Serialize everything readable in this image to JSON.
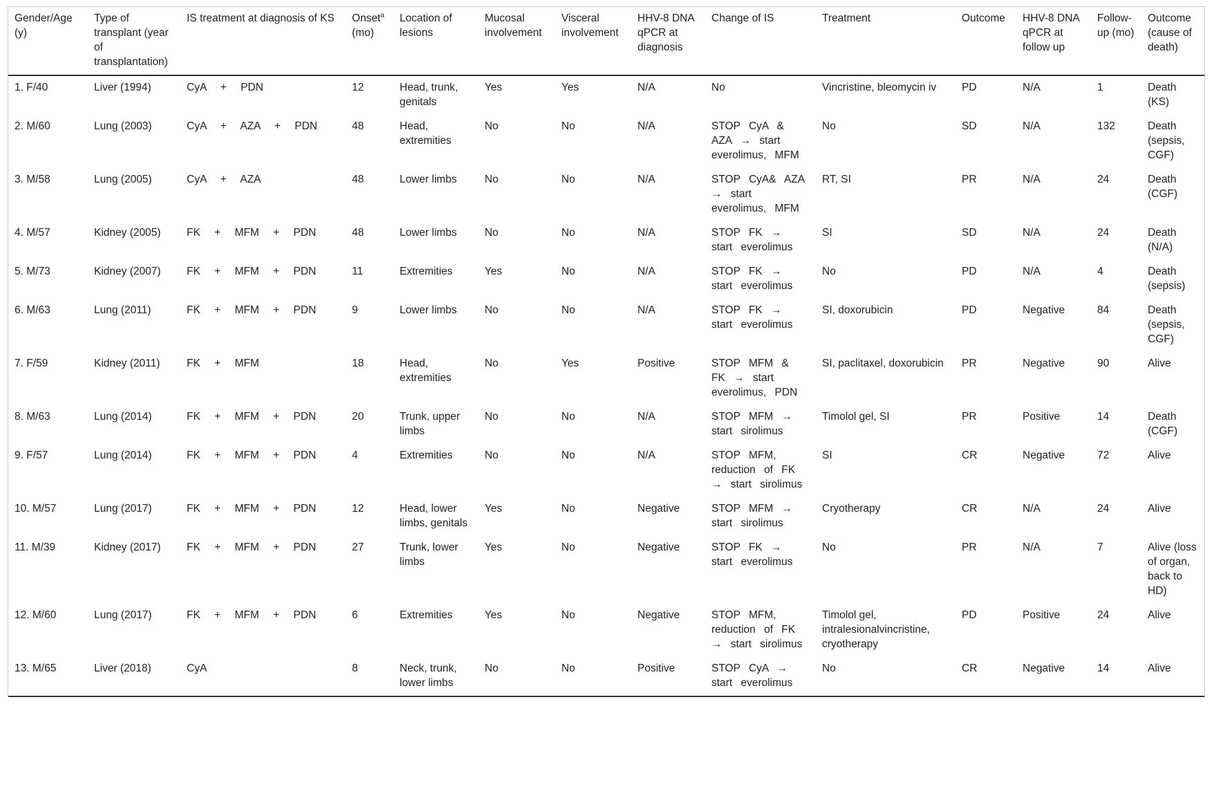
{
  "table": {
    "columns": [
      "Gender/Age (y)",
      "Type of transplant (year of transplantation)",
      "IS treatment at diagnosis of KS",
      {
        "text": "Onset",
        "sup": "a",
        "after": "(mo)"
      },
      "Location of lesions",
      "Mucosal involvement",
      "Visceral involvement",
      "HHV-8 DNA qPCR at diagnosis",
      "Change of IS",
      "Treatment",
      "Outcome",
      "HHV-8 DNA qPCR at follow up",
      "Follow-up (mo)",
      "Outcome (cause of death)"
    ],
    "rows": [
      [
        "1. F/40",
        "Liver (1994)",
        "CyA + PDN",
        "12",
        "Head, trunk, genitals",
        "Yes",
        "Yes",
        "N/A",
        "No",
        "Vincristine, bleomycin iv",
        "PD",
        "N/A",
        "1",
        "Death (KS)"
      ],
      [
        "2. M/60",
        "Lung (2003)",
        "CyA + AZA + PDN",
        "48",
        "Head, extremities",
        "No",
        "No",
        "N/A",
        "STOP CyA & AZA → start everolimus, MFM",
        "No",
        "SD",
        "N/A",
        "132",
        "Death (sepsis, CGF)"
      ],
      [
        "3. M/58",
        "Lung (2005)",
        "CyA + AZA",
        "48",
        "Lower limbs",
        "No",
        "No",
        "N/A",
        "STOP CyA& AZA → start everolimus, MFM",
        "RT, SI",
        "PR",
        "N/A",
        "24",
        "Death (CGF)"
      ],
      [
        "4. M/57",
        "Kidney (2005)",
        "FK + MFM + PDN",
        "48",
        "Lower limbs",
        "No",
        "No",
        "N/A",
        "STOP FK → start everolimus",
        "SI",
        "SD",
        "N/A",
        "24",
        "Death (N/A)"
      ],
      [
        "5. M/73",
        "Kidney (2007)",
        "FK + MFM + PDN",
        "11",
        "Extremities",
        "Yes",
        "No",
        "N/A",
        "STOP FK → start everolimus",
        "No",
        "PD",
        "N/A",
        "4",
        "Death (sepsis)"
      ],
      [
        "6. M/63",
        "Lung (2011)",
        "FK + MFM + PDN",
        "9",
        "Lower limbs",
        "No",
        "No",
        "N/A",
        "STOP FK → start everolimus",
        "SI, doxorubicin",
        "PD",
        "Negative",
        "84",
        "Death (sepsis, CGF)"
      ],
      [
        "7. F/59",
        "Kidney (2011)",
        "FK + MFM",
        "18",
        "Head, extremities",
        "No",
        "Yes",
        "Positive",
        "STOP MFM & FK → start everolimus, PDN",
        "SI, paclitaxel, doxorubicin",
        "PR",
        "Negative",
        "90",
        "Alive"
      ],
      [
        "8. M/63",
        "Lung (2014)",
        "FK + MFM + PDN",
        "20",
        "Trunk, upper limbs",
        "No",
        "No",
        "N/A",
        "STOP MFM → start sirolimus",
        "Timolol gel, SI",
        "PR",
        "Positive",
        "14",
        "Death (CGF)"
      ],
      [
        "9. F/57",
        "Lung (2014)",
        "FK + MFM + PDN",
        "4",
        "Extremities",
        "No",
        "No",
        "N/A",
        "STOP MFM, reduction of FK → start sirolimus",
        "SI",
        "CR",
        "Negative",
        "72",
        "Alive"
      ],
      [
        "10. M/57",
        "Lung (2017)",
        "FK + MFM + PDN",
        "12",
        "Head, lower limbs, genitals",
        "Yes",
        "No",
        "Negative",
        "STOP MFM → start sirolimus",
        "Cryotherapy",
        "CR",
        "N/A",
        "24",
        "Alive"
      ],
      [
        "11. M/39",
        "Kidney (2017)",
        "FK + MFM + PDN",
        "27",
        "Trunk, lower limbs",
        "Yes",
        "No",
        "Negative",
        "STOP FK → start everolimus",
        "No",
        "PR",
        "N/A",
        "7",
        "Alive (loss of organ, back to HD)"
      ],
      [
        "12. M/60",
        "Lung (2017)",
        "FK + MFM + PDN",
        "6",
        "Extremities",
        "Yes",
        "No",
        "Negative",
        "STOP MFM, reduction of FK → start sirolimus",
        "Timolol gel, intralesionalvincristine, cryotherapy",
        "PD",
        "Positive",
        "24",
        "Alive"
      ],
      [
        "13. M/65",
        "Liver (2018)",
        "CyA",
        "8",
        "Neck, trunk, lower limbs",
        "No",
        "No",
        "Positive",
        "STOP CyA → start everolimus",
        "No",
        "CR",
        "Negative",
        "14",
        "Alive"
      ]
    ]
  }
}
